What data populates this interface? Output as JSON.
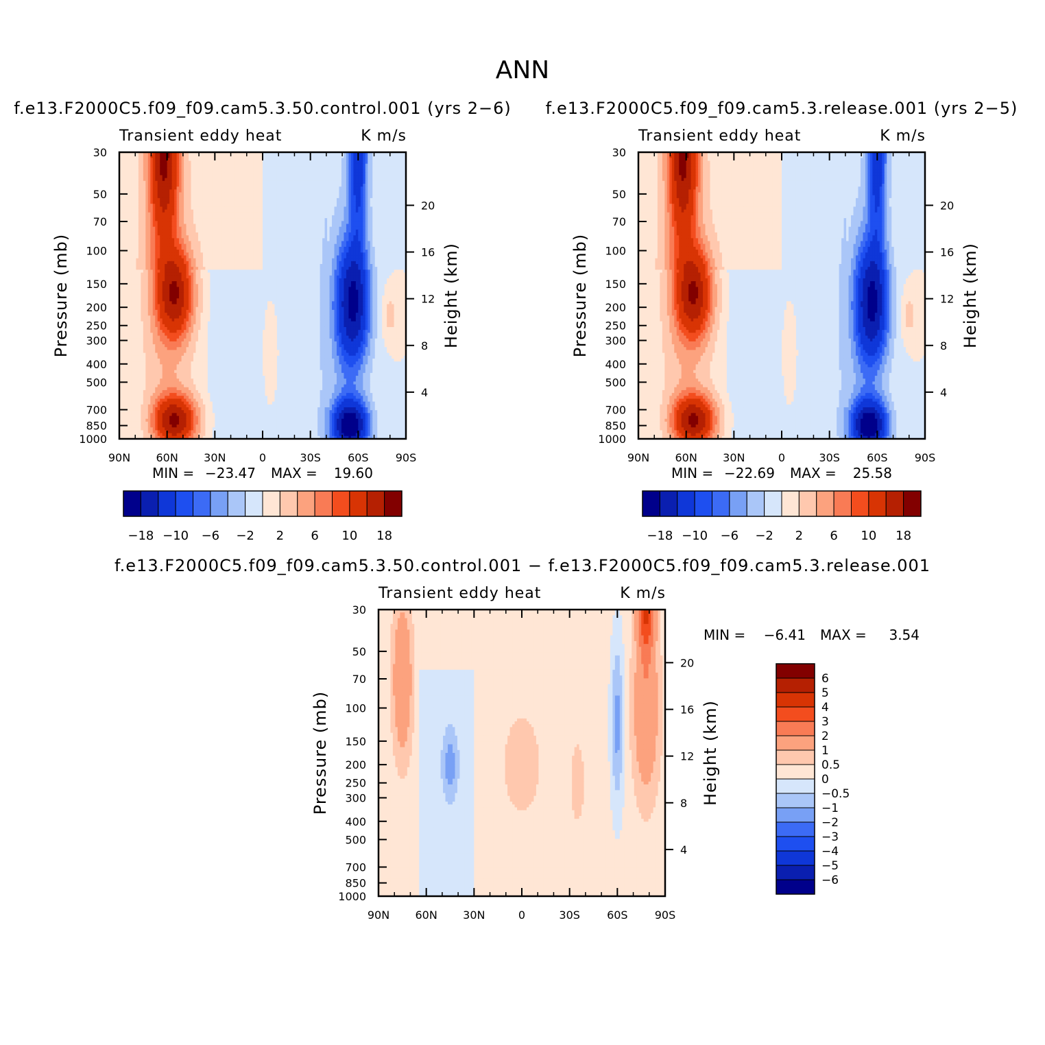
{
  "figure_title": "ANN",
  "palette": {
    "blues": [
      "#00008b",
      "#0a1fb0",
      "#0f37d8",
      "#1e4ff0",
      "#3c6bf5",
      "#78a0f5",
      "#aac6f8",
      "#d6e6fb"
    ],
    "reds": [
      "#ffe6d5",
      "#ffc8ae",
      "#fca27e",
      "#f97b55",
      "#f34d1e",
      "#d83404",
      "#b52002",
      "#820000"
    ]
  },
  "chart_data": [
    {
      "id": "control",
      "type": "contour",
      "title": "f.e13.F2000C5.f09_f09.cam5.3.50.control.001 (yrs 2−6)",
      "left_label": "Transient eddy heat",
      "right_label": "K m/s",
      "ylabel": "Pressure (mb)",
      "ylabel_right": "Height (km)",
      "x_ticks": [
        "90N",
        "60N",
        "30N",
        "0",
        "30S",
        "60S",
        "90S"
      ],
      "y_ticks": [
        "30",
        "50",
        "70",
        "100",
        "150",
        "200",
        "250",
        "300",
        "400",
        "500",
        "700",
        "850",
        "1000"
      ],
      "height_ticks": [
        "20",
        "16",
        "12",
        "8",
        "4"
      ],
      "min_label": "MIN =",
      "min": "−23.47",
      "max_label": "MAX =",
      "max": "19.60",
      "colorbar_labels": [
        "−18",
        "−10",
        "−6",
        "−2",
        "2",
        "6",
        "10",
        "18"
      ],
      "levels": [
        -18,
        -14,
        -10,
        -8,
        -6,
        -4,
        -2,
        0,
        2,
        4,
        6,
        8,
        10,
        14,
        18
      ]
    },
    {
      "id": "release",
      "type": "contour",
      "title": "f.e13.F2000C5.f09_f09.cam5.3.release.001 (yrs 2−5)",
      "left_label": "Transient eddy heat",
      "right_label": "K m/s",
      "ylabel": "Pressure (mb)",
      "ylabel_right": "Height (km)",
      "x_ticks": [
        "90N",
        "60N",
        "30N",
        "0",
        "30S",
        "60S",
        "90S"
      ],
      "y_ticks": [
        "30",
        "50",
        "70",
        "100",
        "150",
        "200",
        "250",
        "300",
        "400",
        "500",
        "700",
        "850",
        "1000"
      ],
      "height_ticks": [
        "20",
        "16",
        "12",
        "8",
        "4"
      ],
      "min_label": "MIN =",
      "min": "−22.69",
      "max_label": "MAX =",
      "max": "25.58",
      "colorbar_labels": [
        "−18",
        "−10",
        "−6",
        "−2",
        "2",
        "6",
        "10",
        "18"
      ],
      "levels": [
        -18,
        -14,
        -10,
        -8,
        -6,
        -4,
        -2,
        0,
        2,
        4,
        6,
        8,
        10,
        14,
        18
      ]
    },
    {
      "id": "difference",
      "type": "contour",
      "title": "f.e13.F2000C5.f09_f09.cam5.3.50.control.001 − f.e13.F2000C5.f09_f09.cam5.3.release.001",
      "left_label": "Transient eddy heat",
      "right_label": "K m/s",
      "ylabel": "Pressure (mb)",
      "ylabel_right": "Height (km)",
      "x_ticks": [
        "90N",
        "60N",
        "30N",
        "0",
        "30S",
        "60S",
        "90S"
      ],
      "y_ticks": [
        "30",
        "50",
        "70",
        "100",
        "150",
        "200",
        "250",
        "300",
        "400",
        "500",
        "700",
        "850",
        "1000"
      ],
      "height_ticks": [
        "20",
        "16",
        "12",
        "8",
        "4"
      ],
      "min_label": "MIN =",
      "min": "−6.41",
      "max_label": "MAX =",
      "max": "3.54",
      "colorbar_labels": [
        "6",
        "5",
        "4",
        "3",
        "2",
        "1",
        "0.5",
        "0",
        "−0.5",
        "−1",
        "−2",
        "−3",
        "−4",
        "−5",
        "−6"
      ],
      "levels": [
        -6,
        -5,
        -4,
        -3,
        -2,
        -1,
        -0.5,
        0,
        0.5,
        1,
        2,
        3,
        4,
        5,
        6
      ]
    }
  ]
}
